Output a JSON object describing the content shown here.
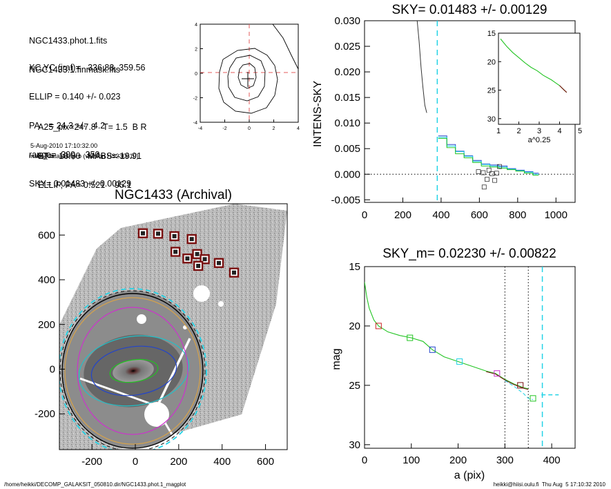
{
  "header": {
    "lines1": [
      "NGC1433.phot.1.fits",
      "NGC1433.1.finmask.fits"
    ],
    "lines2": [
      "XC,YC (iraf)=   336.83, 359.56",
      "ELLIP = 0.140 +/- 0.023",
      "PA    = 24.3 +/-   4.2",
      "range=  300.-  350.",
      "SKY= 0.01483 +/- 0.00129"
    ],
    "lines3": [
      "A25_pix=247.8   T= 1.5  B R",
      "BT=  10.80   MABS=-19.91",
      "ELLIP, PA= 0.521    95.1"
    ],
    "date": "5-Aug-2010 17:10:32.00",
    "program": "make_datalist0.pro (version HS230610)"
  },
  "footer": {
    "left": "/home/heikki/DECOMP_GALAKSIT_050810.dir/NGC1433.phot.1_magplot",
    "right": "heikki@hiisi.oulu.fi  Thu Aug  5 17:10:32 2010"
  },
  "colors": {
    "cyan": "#22d3e6",
    "blue": "#2244cc",
    "green": "#22c422",
    "magenta": "#cc33cc",
    "red": "#cc2222",
    "darkred": "#7a1010",
    "gray": "#999999"
  },
  "chart_data": [
    {
      "id": "center-contour",
      "type": "scatter",
      "title": "",
      "xlim": [
        -4,
        4
      ],
      "ylim": [
        -4,
        4
      ],
      "xticks": [
        -4,
        -2,
        0,
        2,
        4
      ],
      "yticks": [
        -4,
        -2,
        0,
        2,
        4
      ],
      "center": [
        0,
        -0.4
      ]
    },
    {
      "id": "image",
      "type": "scatter",
      "title": "NGC1433 (Archival)",
      "xlim": [
        -350,
        700
      ],
      "ylim": [
        -360,
        740
      ],
      "xticks": [
        -200,
        0,
        200,
        400,
        600
      ],
      "yticks": [
        -200,
        0,
        200,
        400,
        600
      ],
      "masked_boxes": [
        [
          35,
          608
        ],
        [
          105,
          606
        ],
        [
          180,
          595
        ],
        [
          260,
          582
        ],
        [
          185,
          525
        ],
        [
          240,
          495
        ],
        [
          285,
          515
        ],
        [
          320,
          492
        ],
        [
          290,
          462
        ],
        [
          385,
          475
        ],
        [
          455,
          432
        ]
      ]
    },
    {
      "id": "sky-profile",
      "type": "line",
      "title": "SKY= 0.01483 +/- 0.00129",
      "ylabel": "INTENS-SKY",
      "xlim": [
        0,
        1100
      ],
      "ylim": [
        -0.0055,
        0.03
      ],
      "xticks": [
        0,
        200,
        400,
        600,
        800,
        1000
      ],
      "yticks": [
        -0.005,
        0.0,
        0.005,
        0.01,
        0.015,
        0.02,
        0.025,
        0.03
      ],
      "ytick_labels": [
        "-0.005",
        "0.000",
        "0.005",
        "0.010",
        "0.015",
        "0.020",
        "0.025",
        "0.030"
      ],
      "vline": 380,
      "inner_profile": {
        "x": [
          275,
          285,
          295,
          305,
          315,
          325
        ],
        "y": [
          0.03,
          0.026,
          0.021,
          0.017,
          0.0135,
          0.012
        ]
      },
      "series": [
        {
          "color": "blue",
          "x": [
            385,
            430,
            475,
            520,
            565,
            610,
            655,
            700,
            745,
            790,
            835,
            880,
            910
          ],
          "y": [
            0.0075,
            0.0058,
            0.0045,
            0.0036,
            0.0027,
            0.002,
            0.0018,
            0.0016,
            0.0011,
            0.0008,
            0.0005,
            0.0002,
            -0.0002
          ]
        },
        {
          "color": "cyan",
          "x": [
            385,
            430,
            475,
            520,
            565,
            610,
            655,
            700,
            745,
            790,
            835,
            880,
            910
          ],
          "y": [
            0.0072,
            0.0055,
            0.0044,
            0.0035,
            0.0025,
            0.0019,
            0.0016,
            0.0014,
            0.001,
            0.0007,
            0.0004,
            0.0,
            -0.0004
          ]
        },
        {
          "color": "green",
          "x": [
            385,
            430,
            475,
            520,
            565,
            610,
            655,
            700,
            745,
            790,
            835,
            880,
            910
          ],
          "y": [
            0.007,
            0.0052,
            0.004,
            0.0032,
            0.0023,
            0.0016,
            0.0014,
            0.0012,
            0.0009,
            0.0006,
            0.0002,
            -0.0002,
            -0.0005
          ]
        }
      ],
      "squares": [
        [
          595,
          0.0005
        ],
        [
          620,
          0.0003
        ],
        [
          650,
          0.0008
        ],
        [
          665,
          0.0001
        ],
        [
          690,
          0.0002
        ],
        [
          705,
          0.0015
        ],
        [
          640,
          -0.001
        ],
        [
          625,
          -0.0025
        ],
        [
          680,
          -0.0012
        ]
      ],
      "inset": {
        "xlabel": "a^0.25",
        "xlim": [
          1,
          5
        ],
        "ylim": [
          15,
          31
        ],
        "xticks": [
          1,
          2,
          3,
          4,
          5
        ],
        "yticks": [
          15,
          20,
          25,
          30
        ],
        "x": [
          1.1,
          1.4,
          1.7,
          2.0,
          2.3,
          2.6,
          2.9,
          3.2,
          3.4,
          3.6,
          3.8,
          4.0,
          4.2,
          4.35
        ],
        "y": [
          16.0,
          17.3,
          18.4,
          19.3,
          20.2,
          21.0,
          21.6,
          22.4,
          22.8,
          23.2,
          23.7,
          24.2,
          24.9,
          25.4
        ]
      }
    },
    {
      "id": "mag-profile",
      "type": "line",
      "title": "SKY_m=  0.02230 +/- 0.00822",
      "xlabel": "a (pix)",
      "ylabel": "mag",
      "xlim": [
        0,
        450
      ],
      "ylim": [
        15,
        30.3
      ],
      "xticks": [
        0,
        100,
        200,
        300,
        400
      ],
      "yticks": [
        15,
        20,
        25,
        30
      ],
      "vlines_dotted": [
        300,
        350
      ],
      "vline_dashed": 380,
      "profile": {
        "x": [
          0,
          5,
          10,
          20,
          30,
          50,
          75,
          100,
          125,
          145,
          170,
          200,
          230,
          260,
          280,
          300,
          320,
          340,
          350
        ],
        "y": [
          16.3,
          17.6,
          18.5,
          19.5,
          20.0,
          20.5,
          20.8,
          21.0,
          21.3,
          22.0,
          22.6,
          23.0,
          23.4,
          23.8,
          24.0,
          24.5,
          24.9,
          25.2,
          25.3
        ]
      },
      "cyan_tail": {
        "x": [
          300,
          320,
          340,
          350,
          360
        ],
        "y": [
          24.6,
          25.1,
          25.7,
          26.1,
          26.2
        ]
      },
      "cyan_dash_level": {
        "x": [
          378,
          415
        ],
        "y": 25.8
      },
      "squares": [
        {
          "x": 30,
          "y": 20.0,
          "color": "red"
        },
        {
          "x": 97,
          "y": 21.0,
          "color": "green"
        },
        {
          "x": 145,
          "y": 22.0,
          "color": "blue"
        },
        {
          "x": 203,
          "y": 23.0,
          "color": "cyan"
        },
        {
          "x": 283,
          "y": 24.0,
          "color": "magenta"
        },
        {
          "x": 333,
          "y": 25.0,
          "color": "darkred"
        },
        {
          "x": 360,
          "y": 26.1,
          "color": "green"
        }
      ]
    }
  ]
}
